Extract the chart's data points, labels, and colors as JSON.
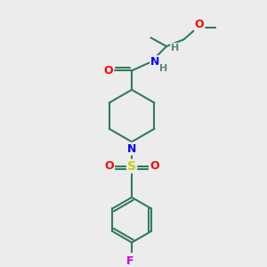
{
  "background_color": "#ececec",
  "bond_color": "#2d7d5a",
  "atom_colors": {
    "O": "#ff0000",
    "N": "#0000ff",
    "S": "#cccc00",
    "F": "#cc00cc",
    "H": "#558888",
    "C": "#2d7d5a"
  },
  "figsize": [
    3.0,
    3.0
  ],
  "dpi": 100,
  "lw": 1.5
}
